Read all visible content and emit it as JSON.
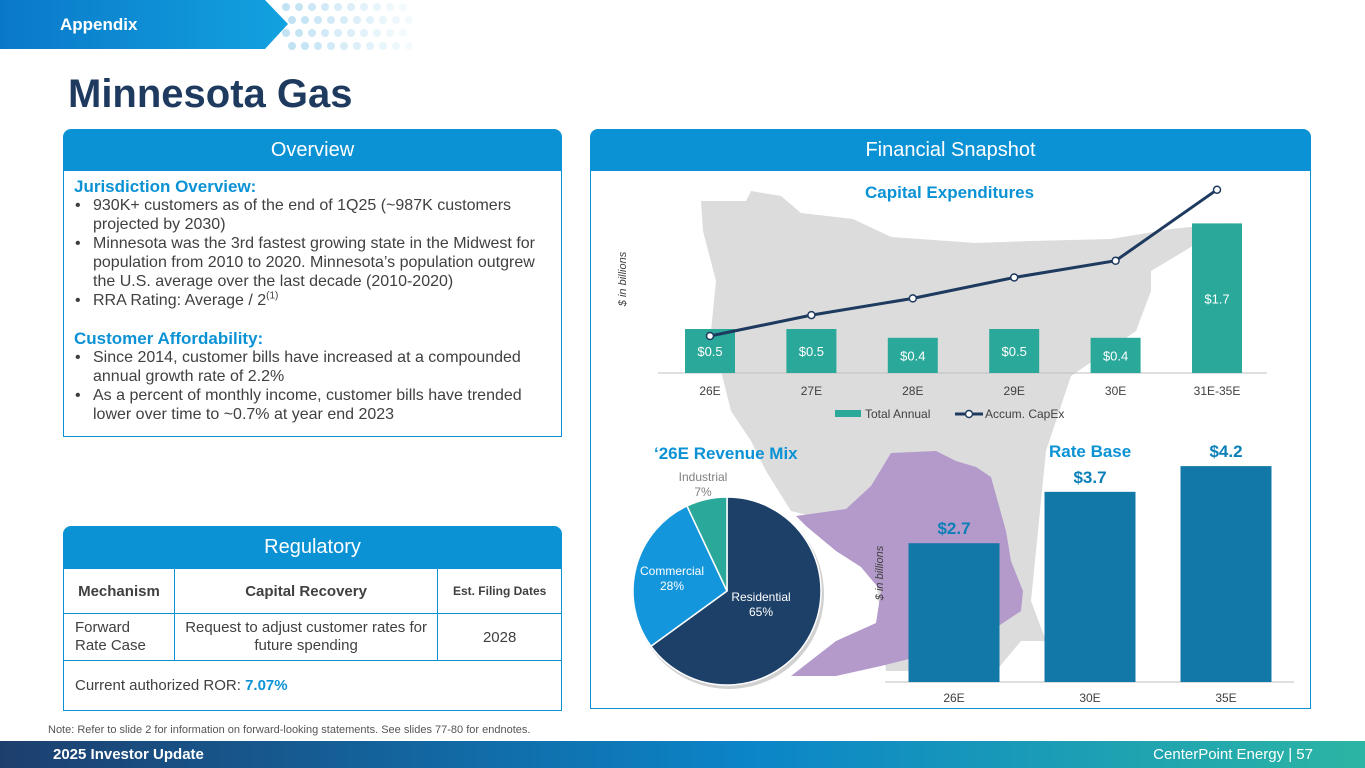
{
  "header": {
    "section_tag": "Appendix",
    "title": "Minnesota Gas"
  },
  "overview": {
    "title": "Overview",
    "jurisdiction_heading": "Jurisdiction Overview:",
    "jurisdiction_items": [
      "930K+ customers as of the end of 1Q25 (~987K customers projected by 2030)",
      "Minnesota was the 3rd fastest growing state in the Midwest for population from 2010 to 2020. Minnesota’s population outgrew the U.S. average over the last decade (2010-2020)",
      "RRA Rating: Average / 2"
    ],
    "rra_footnote": "(1)",
    "affordability_heading": "Customer Affordability:",
    "affordability_items": [
      "Since 2014, customer bills have increased at a compounded annual growth rate of 2.2%",
      "As a percent of monthly income, customer bills have trended lower over time to ~0.7% at year end 2023"
    ]
  },
  "regulatory": {
    "title": "Regulatory",
    "col_mechanism": "Mechanism",
    "col_capital": "Capital Recovery",
    "col_dates": "Est. Filing Dates",
    "row_mechanism": "Forward\nRate Case",
    "row_capital": "Request to adjust customer rates for future spending",
    "row_date": "2028",
    "ror_label": "Current authorized ROR: ",
    "ror_value": "7.07%"
  },
  "financial": {
    "title": "Financial Snapshot"
  },
  "chart_data": [
    {
      "type": "bar",
      "title": "Capital Expenditures",
      "ylabel": "$ in billions",
      "categories": [
        "26E",
        "27E",
        "28E",
        "29E",
        "30E",
        "31E-35E"
      ],
      "series": [
        {
          "name": "Total Annual",
          "values": [
            0.5,
            0.5,
            0.4,
            0.5,
            0.4,
            1.7
          ],
          "labels": [
            "$0.5",
            "$0.5",
            "$0.4",
            "$0.5",
            "$0.4",
            "$1.7"
          ],
          "color": "#2aa89a"
        },
        {
          "name": "Accum. CapEx",
          "type": "line",
          "values": [
            0.5,
            1.0,
            1.4,
            1.9,
            2.3,
            4.0
          ],
          "color": "#1e3a5f"
        }
      ],
      "legend": "bottom"
    },
    {
      "type": "pie",
      "title": "‘26E Revenue Mix",
      "slices": [
        {
          "name": "Residential",
          "value": 65,
          "label": "65%",
          "color": "#1d4068"
        },
        {
          "name": "Commercial",
          "value": 28,
          "label": "28%",
          "color": "#1496dc"
        },
        {
          "name": "Industrial",
          "value": 7,
          "label": "7%",
          "color": "#2aa89a"
        }
      ]
    },
    {
      "type": "bar",
      "title": "Rate Base",
      "ylabel": "$ in billions",
      "categories": [
        "26E",
        "30E",
        "35E"
      ],
      "values": [
        2.7,
        3.7,
        4.2
      ],
      "labels": [
        "$2.7",
        "$3.7",
        "$4.2"
      ],
      "color": "#1178a8"
    }
  ],
  "note": "Note: Refer to slide 2 for information on forward-looking statements. See slides 77-80 for endnotes.",
  "footer": {
    "left": "2025 Investor Update",
    "right": "CenterPoint Energy | 57"
  },
  "colors": {
    "primary_blue": "#0b92d5",
    "navy": "#1e3a5f",
    "teal": "#2aa89a",
    "rate_base_blue": "#1178a8",
    "map_gray": "#dcdcdc",
    "service_purple": "#b49acb"
  }
}
